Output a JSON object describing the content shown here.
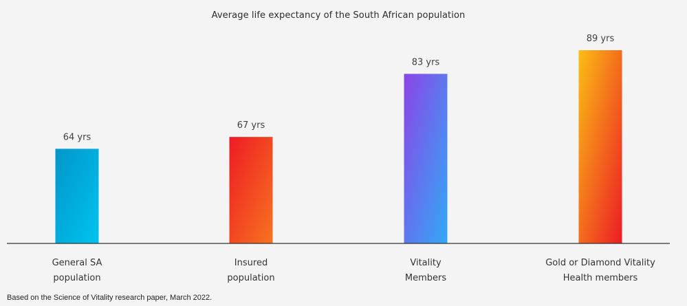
{
  "chart_data": {
    "type": "bar",
    "title": "Average life expectancy of the South African population",
    "categories": [
      [
        "General SA",
        "population"
      ],
      [
        "Insured",
        "population"
      ],
      [
        "Vitality",
        "Members"
      ],
      [
        "Gold or Diamond Vitality",
        "Health members"
      ]
    ],
    "values": [
      64,
      67,
      83,
      89
    ],
    "value_labels": [
      "64 yrs",
      "67 yrs",
      "83 yrs",
      "89 yrs"
    ],
    "unit": "yrs",
    "ylim": [
      40,
      89
    ],
    "grid": false,
    "legend": "none",
    "bar_gradients": [
      [
        "#0196c9",
        "#00c3ef"
      ],
      [
        "#ee1b24",
        "#f77320"
      ],
      [
        "#8b45e6",
        "#32a9f7"
      ],
      [
        "#fbbe14",
        "#ec1b25"
      ]
    ]
  },
  "footnote": "Based on the Science of Vitality research paper, March 2022."
}
